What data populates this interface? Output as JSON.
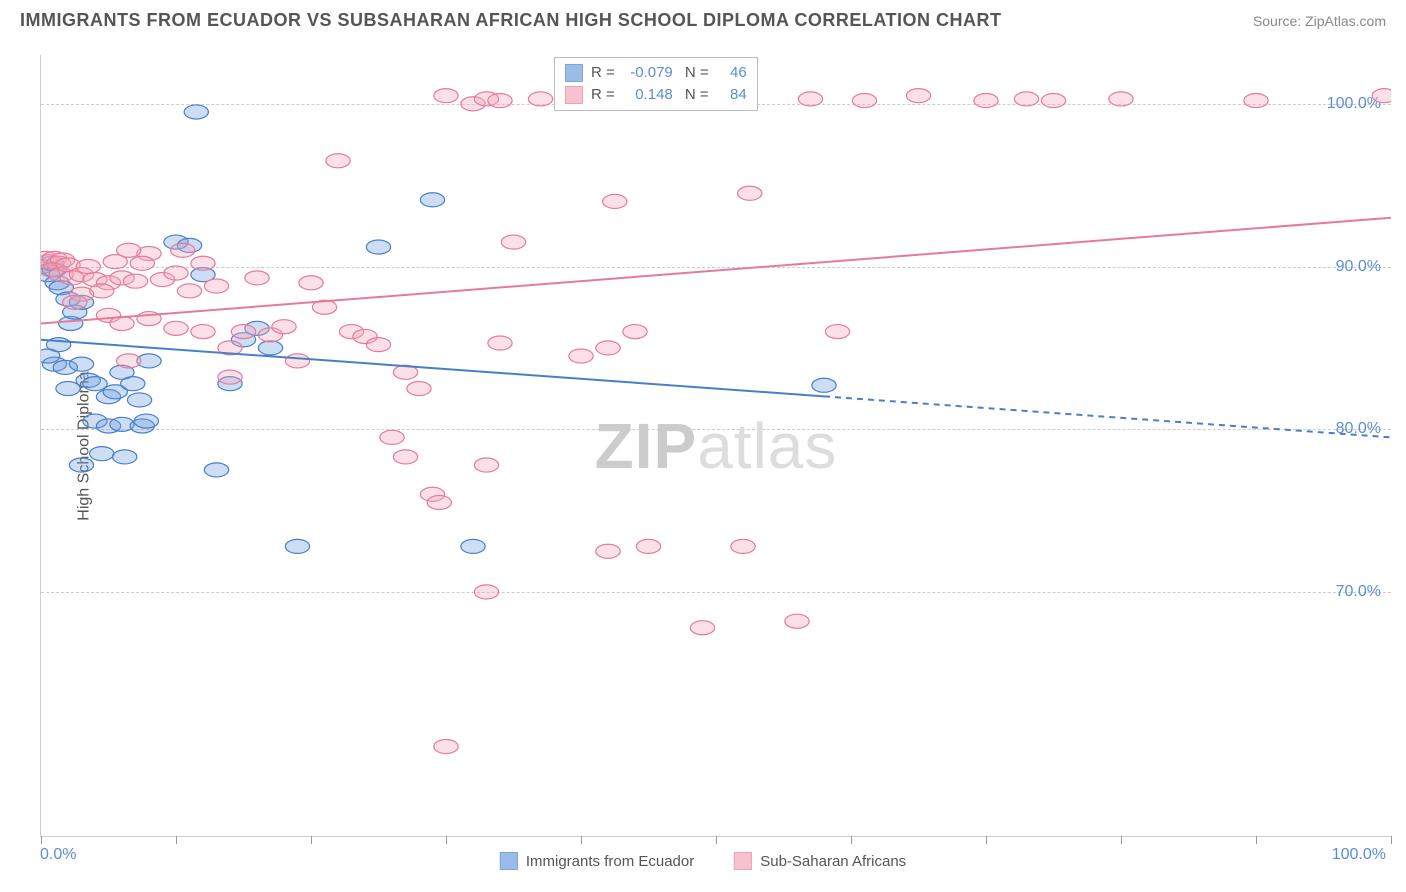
{
  "header": {
    "title": "IMMIGRANTS FROM ECUADOR VS SUBSAHARAN AFRICAN HIGH SCHOOL DIPLOMA CORRELATION CHART",
    "source": "Source: ZipAtlas.com"
  },
  "chart": {
    "type": "scatter",
    "ylabel": "High School Diploma",
    "watermark": "ZIPatlas",
    "background_color": "#ffffff",
    "grid_color": "#cccccc",
    "xlim": [
      0,
      100
    ],
    "ylim": [
      55,
      103
    ],
    "yticks": [
      70,
      80,
      90,
      100
    ],
    "ytick_labels": [
      "70.0%",
      "80.0%",
      "90.0%",
      "100.0%"
    ],
    "xticks": [
      0,
      10,
      20,
      30,
      40,
      50,
      60,
      70,
      80,
      90,
      100
    ],
    "xtick_label_left": "0.0%",
    "xtick_label_right": "100.0%",
    "marker_radius": 9,
    "marker_fill_opacity": 0.35,
    "line_width": 2,
    "series": [
      {
        "name": "Immigrants from Ecuador",
        "color": "#6fa0e0",
        "stroke": "#4a7fc8",
        "R": "-0.079",
        "N": "46",
        "trend": {
          "x1": 0,
          "y1": 85.5,
          "x2": 100,
          "y2": 79.5,
          "solid_until_x": 58
        },
        "points": [
          [
            0,
            90
          ],
          [
            0.5,
            89.5
          ],
          [
            1,
            89.8
          ],
          [
            0.8,
            90.2
          ],
          [
            1.2,
            89
          ],
          [
            1.5,
            88.7
          ],
          [
            2,
            88
          ],
          [
            1,
            84
          ],
          [
            1.3,
            85.2
          ],
          [
            2.2,
            86.5
          ],
          [
            2.5,
            87.2
          ],
          [
            3,
            87.8
          ],
          [
            0.5,
            84.5
          ],
          [
            1.8,
            83.8
          ],
          [
            2,
            82.5
          ],
          [
            3,
            84
          ],
          [
            3.5,
            83
          ],
          [
            4,
            82.8
          ],
          [
            5,
            82
          ],
          [
            5.5,
            82.3
          ],
          [
            6,
            83.5
          ],
          [
            6.8,
            82.8
          ],
          [
            7.3,
            81.8
          ],
          [
            4,
            80.5
          ],
          [
            5,
            80.2
          ],
          [
            6,
            80.3
          ],
          [
            7.5,
            80.2
          ],
          [
            7.8,
            80.5
          ],
          [
            4.5,
            78.5
          ],
          [
            6.2,
            78.3
          ],
          [
            3,
            77.8
          ],
          [
            13,
            77.5
          ],
          [
            8,
            84.2
          ],
          [
            10,
            91.5
          ],
          [
            11,
            91.3
          ],
          [
            14,
            82.8
          ],
          [
            19,
            72.8
          ],
          [
            25,
            91.2
          ],
          [
            29,
            94.1
          ],
          [
            32,
            72.8
          ],
          [
            15,
            85.5
          ],
          [
            17,
            85
          ],
          [
            11.5,
            99.5
          ],
          [
            12,
            89.5
          ],
          [
            16,
            86.2
          ],
          [
            58,
            82.7
          ]
        ]
      },
      {
        "name": "Sub-Saharan Africans",
        "color": "#f4a8bb",
        "stroke": "#e57b99",
        "R": "0.148",
        "N": "84",
        "trend": {
          "x1": 0,
          "y1": 86.5,
          "x2": 100,
          "y2": 93,
          "solid_until_x": 100
        },
        "points": [
          [
            0.3,
            90.5
          ],
          [
            0.6,
            90.3
          ],
          [
            1,
            90.5
          ],
          [
            1.3,
            90.2
          ],
          [
            1.6,
            90.4
          ],
          [
            0.8,
            89.8
          ],
          [
            1.5,
            89.5
          ],
          [
            2,
            90.1
          ],
          [
            2.3,
            89.3
          ],
          [
            3,
            89.5
          ],
          [
            3.5,
            90
          ],
          [
            4,
            89.2
          ],
          [
            5,
            89
          ],
          [
            4.5,
            88.5
          ],
          [
            6,
            89.3
          ],
          [
            7,
            89.1
          ],
          [
            8,
            90.8
          ],
          [
            9,
            89.2
          ],
          [
            10,
            89.6
          ],
          [
            6.5,
            91
          ],
          [
            5.5,
            90.3
          ],
          [
            7.5,
            90.2
          ],
          [
            3,
            88.3
          ],
          [
            2.5,
            87.8
          ],
          [
            5,
            87
          ],
          [
            6,
            86.5
          ],
          [
            8,
            86.8
          ],
          [
            10,
            86.2
          ],
          [
            10.5,
            91
          ],
          [
            11,
            88.5
          ],
          [
            12,
            90.2
          ],
          [
            13,
            88.8
          ],
          [
            15,
            86
          ],
          [
            16,
            89.3
          ],
          [
            17,
            85.8
          ],
          [
            18,
            86.3
          ],
          [
            20,
            89
          ],
          [
            12,
            86
          ],
          [
            14,
            85
          ],
          [
            19,
            84.2
          ],
          [
            21,
            87.5
          ],
          [
            22,
            96.5
          ],
          [
            23,
            86
          ],
          [
            24,
            85.7
          ],
          [
            25,
            85.2
          ],
          [
            27,
            83.5
          ],
          [
            28,
            82.5
          ],
          [
            30,
            100.5
          ],
          [
            32,
            100
          ],
          [
            33,
            100.3
          ],
          [
            34,
            100.2
          ],
          [
            35,
            91.5
          ],
          [
            37,
            100.3
          ],
          [
            40,
            84.5
          ],
          [
            42,
            85
          ],
          [
            42.5,
            94
          ],
          [
            34,
            85.3
          ],
          [
            26,
            79.5
          ],
          [
            27,
            78.3
          ],
          [
            29,
            76
          ],
          [
            29.5,
            75.5
          ],
          [
            33,
            77.8
          ],
          [
            33,
            70
          ],
          [
            42,
            72.5
          ],
          [
            44,
            86
          ],
          [
            45,
            72.8
          ],
          [
            48,
            100.2
          ],
          [
            49,
            67.8
          ],
          [
            52,
            72.8
          ],
          [
            52.5,
            94.5
          ],
          [
            56,
            68.2
          ],
          [
            59,
            86
          ],
          [
            30,
            60.5
          ],
          [
            57,
            100.3
          ],
          [
            61,
            100.2
          ],
          [
            65,
            100.5
          ],
          [
            70,
            100.2
          ],
          [
            73,
            100.3
          ],
          [
            75,
            100.2
          ],
          [
            80,
            100.3
          ],
          [
            90,
            100.2
          ],
          [
            99.5,
            100.5
          ],
          [
            14,
            83.2
          ],
          [
            6.5,
            84.2
          ]
        ]
      }
    ]
  },
  "legend_top": {
    "rows": [
      {
        "color": "#6fa0e0",
        "stroke": "#4a7fc8",
        "r_label": "R =",
        "r_val": "-0.079",
        "n_label": "N =",
        "n_val": "46"
      },
      {
        "color": "#f4a8bb",
        "stroke": "#e57b99",
        "r_label": "R =",
        "r_val": "0.148",
        "n_label": "N =",
        "n_val": "84"
      }
    ]
  },
  "legend_bottom": {
    "items": [
      {
        "color": "#6fa0e0",
        "stroke": "#4a7fc8",
        "label": "Immigrants from Ecuador"
      },
      {
        "color": "#f4a8bb",
        "stroke": "#e57b99",
        "label": "Sub-Saharan Africans"
      }
    ]
  }
}
